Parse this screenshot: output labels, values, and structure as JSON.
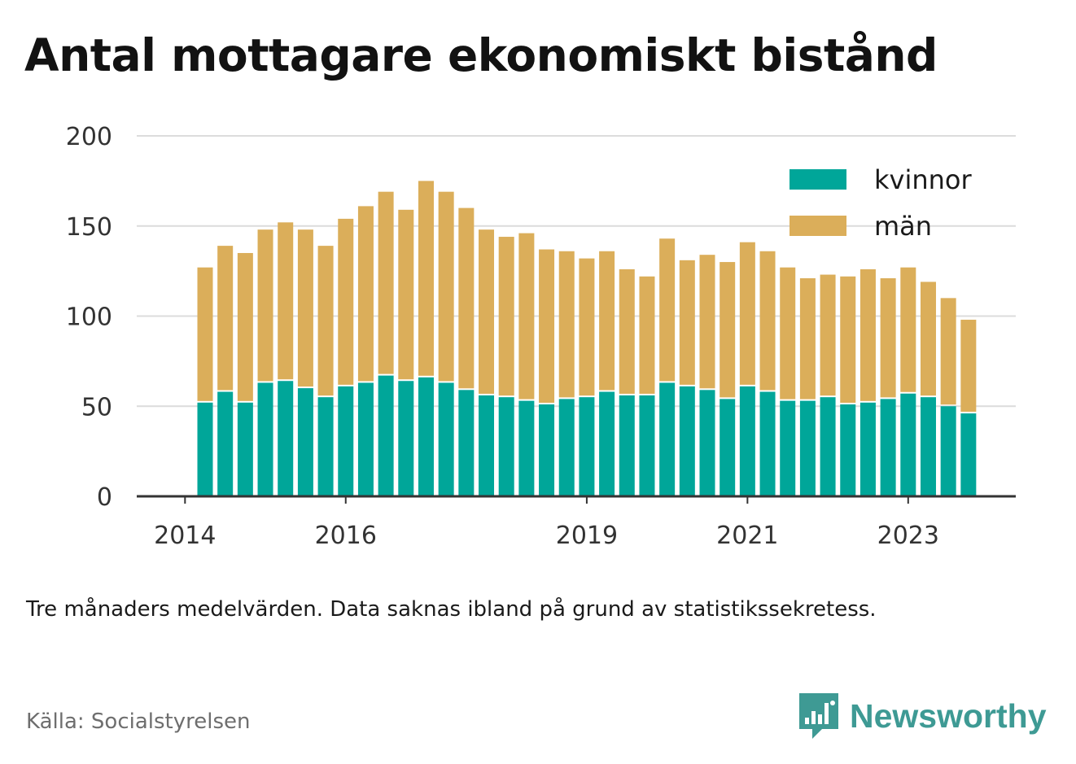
{
  "title": "Antal mottagare ekonomiskt bistånd",
  "note": "Tre månaders medelvärden. Data saknas ibland på grund av statistikssekretess.",
  "source": "Källa: Socialstyrelsen",
  "brand": {
    "name": "Newsworthy",
    "icon": "newsworthy-chart-bubble-icon",
    "color": "#3e9a94"
  },
  "colors": {
    "kvinnor": "#00a699",
    "man": "#dbae5a",
    "grid": "#dcdcdc",
    "axis": "#333333"
  },
  "chart_data": {
    "type": "bar",
    "stacked": true,
    "title": "Antal mottagare ekonomiskt bistånd",
    "xlabel": "",
    "ylabel": "",
    "ylim": [
      0,
      200
    ],
    "yticks": [
      0,
      50,
      100,
      150,
      200
    ],
    "xticks": [
      "2014",
      "2016",
      "2019",
      "2021",
      "2023"
    ],
    "legend_position": "top-right",
    "grid": true,
    "categories": [
      "2014-Q2",
      "2014-Q3",
      "2014-Q4",
      "2015-Q1",
      "2015-Q2",
      "2015-Q3",
      "2015-Q4",
      "2016-Q1",
      "2016-Q2",
      "2016-Q3",
      "2016-Q4",
      "2017-Q1",
      "2017-Q2",
      "2017-Q3",
      "2017-Q4",
      "2018-Q1",
      "2018-Q2",
      "2018-Q3",
      "2018-Q4",
      "2019-Q1",
      "2019-Q2",
      "2019-Q3",
      "2019-Q4",
      "2020-Q1",
      "2020-Q2",
      "2020-Q3",
      "2020-Q4",
      "2021-Q1",
      "2021-Q2",
      "2021-Q3",
      "2021-Q4",
      "2022-Q1",
      "2022-Q2",
      "2022-Q3",
      "2022-Q4",
      "2023-Q1",
      "2023-Q2",
      "2023-Q3",
      "2023-Q4"
    ],
    "series": [
      {
        "name": "kvinnor",
        "values": [
          52,
          58,
          52,
          63,
          64,
          60,
          55,
          61,
          63,
          67,
          64,
          66,
          63,
          59,
          56,
          55,
          53,
          51,
          54,
          55,
          58,
          56,
          56,
          63,
          61,
          59,
          54,
          61,
          58,
          53,
          53,
          55,
          51,
          52,
          54,
          57,
          55,
          50,
          46
        ]
      },
      {
        "name": "män",
        "values": [
          75,
          81,
          83,
          85,
          88,
          88,
          84,
          93,
          98,
          102,
          95,
          109,
          106,
          101,
          92,
          89,
          93,
          86,
          82,
          77,
          78,
          70,
          66,
          80,
          70,
          75,
          76,
          80,
          78,
          74,
          68,
          68,
          71,
          74,
          67,
          70,
          64,
          60,
          52
        ]
      }
    ]
  }
}
